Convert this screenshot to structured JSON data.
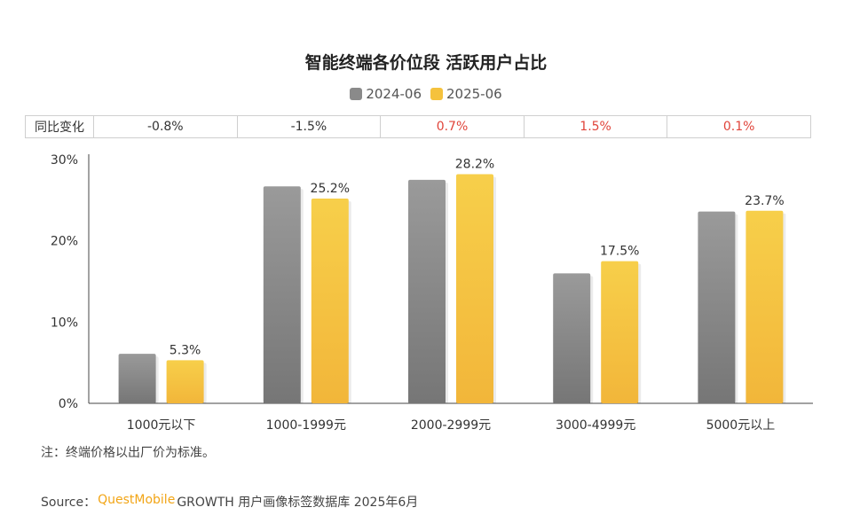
{
  "title": "智能终端各价位段 活跃用户占比",
  "legend": [
    {
      "name": "2024-06",
      "color": "#8a8a8a"
    },
    {
      "name": "2025-06",
      "color": "#f5c23d"
    }
  ],
  "yoy": {
    "label": "同比变化",
    "cells": [
      {
        "text": "-0.8%",
        "color": "#333333"
      },
      {
        "text": "-1.5%",
        "color": "#333333"
      },
      {
        "text": "0.7%",
        "color": "#e0443a"
      },
      {
        "text": "1.5%",
        "color": "#e0443a"
      },
      {
        "text": "0.1%",
        "color": "#e0443a"
      }
    ]
  },
  "chart_data": {
    "type": "bar",
    "categories": [
      "1000元以下",
      "1000-1999元",
      "2000-2999元",
      "3000-4999元",
      "5000元以上"
    ],
    "series": [
      {
        "name": "2024-06",
        "values": [
          6.1,
          26.7,
          27.5,
          16.0,
          23.6
        ]
      },
      {
        "name": "2025-06",
        "values": [
          5.3,
          25.2,
          28.2,
          17.5,
          23.7
        ]
      }
    ],
    "data_labels": [
      "5.3%",
      "25.2%",
      "28.2%",
      "17.5%",
      "23.7%"
    ],
    "yticks": [
      "0%",
      "10%",
      "20%",
      "30%"
    ],
    "ylim": [
      0,
      30
    ],
    "grid": false,
    "legend_position": "top-center"
  },
  "note": "注：终端价格以出厂价为标准。",
  "source": {
    "prefix": "Source：",
    "brand": "QuestMobile",
    "rest": " GROWTH 用户画像标签数据库 2025年6月"
  }
}
